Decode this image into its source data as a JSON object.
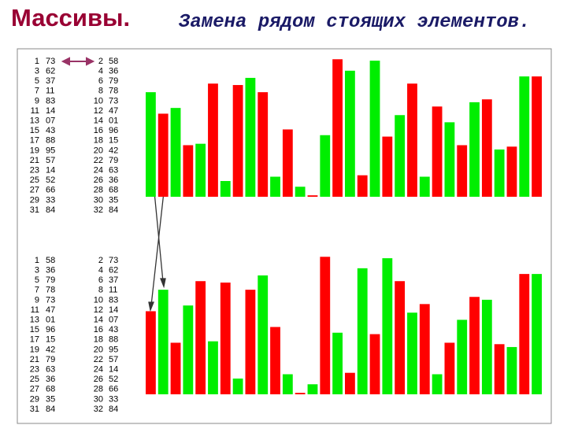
{
  "title": "Массивы.",
  "subtitle": "Замена рядом стоящих элементов.",
  "panels": [
    {
      "indices": [
        1,
        2,
        3,
        4,
        5,
        6,
        7,
        8,
        9,
        10,
        11,
        12,
        13,
        14,
        15,
        16,
        17,
        18,
        19,
        20,
        21,
        22,
        23,
        24,
        25,
        26,
        27,
        28,
        29,
        30,
        31,
        32
      ],
      "values": [
        73,
        58,
        62,
        36,
        37,
        79,
        11,
        78,
        83,
        73,
        14,
        47,
        7,
        1,
        43,
        96,
        88,
        15,
        95,
        42,
        57,
        79,
        14,
        63,
        52,
        36,
        66,
        68,
        33,
        35,
        84,
        84
      ],
      "value_labels": [
        "73",
        "58",
        "62",
        "36",
        "37",
        "79",
        "11",
        "78",
        "83",
        "73",
        "14",
        "47",
        "07",
        "01",
        "43",
        "96",
        "88",
        "15",
        "95",
        "42",
        "57",
        "79",
        "14",
        "63",
        "52",
        "36",
        "66",
        "68",
        "33",
        "35",
        "84",
        "84"
      ],
      "colors": [
        "#00ee00",
        "#ff0000",
        "#00ee00",
        "#ff0000",
        "#00ee00",
        "#ff0000",
        "#00ee00",
        "#ff0000",
        "#00ee00",
        "#ff0000",
        "#00ee00",
        "#ff0000",
        "#00ee00",
        "#ff0000",
        "#00ee00",
        "#ff0000",
        "#00ee00",
        "#ff0000",
        "#00ee00",
        "#ff0000",
        "#00ee00",
        "#ff0000",
        "#00ee00",
        "#ff0000",
        "#00ee00",
        "#ff0000",
        "#00ee00",
        "#ff0000",
        "#00ee00",
        "#ff0000",
        "#00ee00",
        "#ff0000"
      ],
      "ylim": [
        0,
        100
      ]
    },
    {
      "indices": [
        1,
        2,
        3,
        4,
        5,
        6,
        7,
        8,
        9,
        10,
        11,
        12,
        13,
        14,
        15,
        16,
        17,
        18,
        19,
        20,
        21,
        22,
        23,
        24,
        25,
        26,
        27,
        28,
        29,
        30,
        31,
        32
      ],
      "values": [
        58,
        73,
        36,
        62,
        79,
        37,
        78,
        11,
        73,
        83,
        47,
        14,
        1,
        7,
        96,
        43,
        15,
        88,
        42,
        95,
        79,
        57,
        63,
        14,
        36,
        52,
        68,
        66,
        35,
        33,
        84,
        84
      ],
      "value_labels": [
        "58",
        "73",
        "36",
        "62",
        "79",
        "37",
        "78",
        "11",
        "73",
        "83",
        "47",
        "14",
        "01",
        "07",
        "96",
        "43",
        "15",
        "88",
        "42",
        "95",
        "79",
        "57",
        "63",
        "14",
        "36",
        "52",
        "68",
        "66",
        "35",
        "33",
        "84",
        "84"
      ],
      "colors": [
        "#ff0000",
        "#00ee00",
        "#ff0000",
        "#00ee00",
        "#ff0000",
        "#00ee00",
        "#ff0000",
        "#00ee00",
        "#ff0000",
        "#00ee00",
        "#ff0000",
        "#00ee00",
        "#ff0000",
        "#00ee00",
        "#ff0000",
        "#00ee00",
        "#ff0000",
        "#00ee00",
        "#ff0000",
        "#00ee00",
        "#ff0000",
        "#00ee00",
        "#ff0000",
        "#00ee00",
        "#ff0000",
        "#00ee00",
        "#ff0000",
        "#00ee00",
        "#ff0000",
        "#00ee00",
        "#ff0000",
        "#00ee00"
      ],
      "ylim": [
        0,
        100
      ]
    }
  ]
}
